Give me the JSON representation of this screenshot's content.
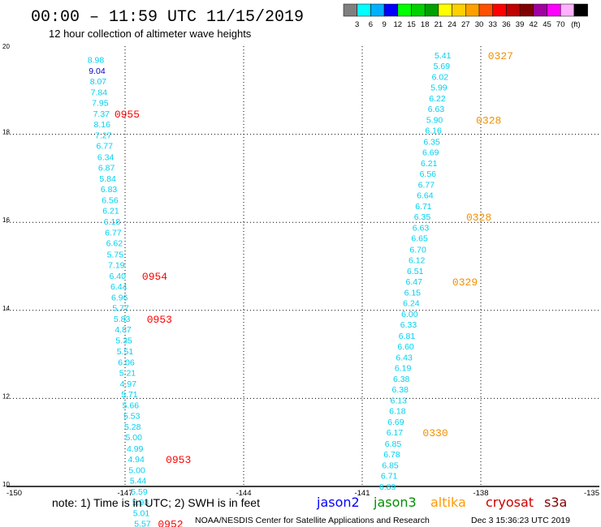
{
  "header": {
    "title": "00:00 – 11:59 UTC 11/15/2019",
    "subtitle": "12 hour collection of altimeter wave heights"
  },
  "colorbar": {
    "colors": [
      "#808080",
      "#00ffff",
      "#00b0ff",
      "#0000ff",
      "#00ff00",
      "#00d000",
      "#00a000",
      "#ffff00",
      "#ffd000",
      "#ffa000",
      "#ff5000",
      "#ff0000",
      "#c00000",
      "#800000",
      "#a000a0",
      "#ff00ff",
      "#ffb0ff",
      "#000000"
    ],
    "labels": [
      "3",
      "6",
      "9",
      "12",
      "15",
      "18",
      "21",
      "24",
      "27",
      "30",
      "33",
      "36",
      "39",
      "42",
      "45",
      "70"
    ],
    "unit": "(ft)"
  },
  "footer": {
    "note": "note: 1) Time is in UTC; 2) SWH is in feet",
    "legend": [
      {
        "name": "jason2",
        "color": "#0000ff"
      },
      {
        "name": "jason3",
        "color": "#009000"
      },
      {
        "name": "altika",
        "color": "#ff9900"
      },
      {
        "name": "cryosat",
        "color": "#cc0000"
      },
      {
        "name": "s3a",
        "color": "#800000"
      }
    ],
    "credit": "NOAA/NESDIS Center for Satellite Applications and Research",
    "timestamp": "Dec  3 15:36:23 UTC 2019"
  },
  "chart_data": {
    "type": "scatter",
    "xlim": [
      -150,
      -135
    ],
    "ylim": [
      10,
      20
    ],
    "x_ticks": [
      "-150",
      "-147",
      "-144",
      "-141",
      "-138",
      "-135"
    ],
    "x_tick_values": [
      -150,
      -147,
      -144,
      -141,
      -138,
      -135
    ],
    "y_ticks": [
      "10",
      "12",
      "14",
      "16",
      "18",
      "20"
    ],
    "y_tick_values": [
      10,
      12,
      14,
      16,
      18,
      20
    ],
    "grid": true,
    "track_left": {
      "color": "#00d0f0",
      "points": [
        {
          "x": -147.74,
          "y": 19.7,
          "v": "8.98"
        },
        {
          "x": -147.71,
          "y": 19.45,
          "v": "9.04",
          "color": "#0000c0"
        },
        {
          "x": -147.68,
          "y": 19.21,
          "v": "8.07"
        },
        {
          "x": -147.66,
          "y": 18.96,
          "v": "7.84"
        },
        {
          "x": -147.63,
          "y": 18.72,
          "v": "7.95"
        },
        {
          "x": -147.6,
          "y": 18.47,
          "v": "7.37"
        },
        {
          "x": -147.58,
          "y": 18.23,
          "v": "8.16"
        },
        {
          "x": -147.55,
          "y": 17.98,
          "v": "7.27"
        },
        {
          "x": -147.52,
          "y": 17.74,
          "v": "6.77"
        },
        {
          "x": -147.49,
          "y": 17.49,
          "v": "6.34"
        },
        {
          "x": -147.47,
          "y": 17.25,
          "v": "6.87"
        },
        {
          "x": -147.44,
          "y": 17.0,
          "v": "5.84"
        },
        {
          "x": -147.41,
          "y": 16.76,
          "v": "6.83"
        },
        {
          "x": -147.38,
          "y": 16.51,
          "v": "6.56"
        },
        {
          "x": -147.36,
          "y": 16.27,
          "v": "6.21"
        },
        {
          "x": -147.33,
          "y": 16.02,
          "v": "6.18"
        },
        {
          "x": -147.3,
          "y": 15.77,
          "v": "6.77"
        },
        {
          "x": -147.27,
          "y": 15.53,
          "v": "6.62"
        },
        {
          "x": -147.25,
          "y": 15.28,
          "v": "5.75"
        },
        {
          "x": -147.22,
          "y": 15.04,
          "v": "7.19"
        },
        {
          "x": -147.19,
          "y": 14.79,
          "v": "6.40"
        },
        {
          "x": -147.16,
          "y": 14.55,
          "v": "6.44"
        },
        {
          "x": -147.14,
          "y": 14.3,
          "v": "6.96"
        },
        {
          "x": -147.11,
          "y": 14.06,
          "v": "5.77"
        },
        {
          "x": -147.08,
          "y": 13.81,
          "v": "5.83"
        },
        {
          "x": -147.05,
          "y": 13.57,
          "v": "4.87"
        },
        {
          "x": -147.03,
          "y": 13.32,
          "v": "5.35"
        },
        {
          "x": -147.0,
          "y": 13.08,
          "v": "5.51"
        },
        {
          "x": -146.97,
          "y": 12.83,
          "v": "6.06"
        },
        {
          "x": -146.94,
          "y": 12.59,
          "v": "5.21"
        },
        {
          "x": -146.92,
          "y": 12.34,
          "v": "4.97"
        },
        {
          "x": -146.89,
          "y": 12.1,
          "v": "5.71"
        },
        {
          "x": -146.86,
          "y": 11.85,
          "v": "5.66"
        },
        {
          "x": -146.83,
          "y": 11.61,
          "v": "5.53"
        },
        {
          "x": -146.81,
          "y": 11.36,
          "v": "5.28"
        },
        {
          "x": -146.78,
          "y": 11.12,
          "v": "5.00"
        },
        {
          "x": -146.75,
          "y": 10.87,
          "v": "4.99"
        },
        {
          "x": -146.72,
          "y": 10.63,
          "v": "4.94"
        },
        {
          "x": -146.7,
          "y": 10.38,
          "v": "5.00"
        },
        {
          "x": -146.67,
          "y": 10.14,
          "v": "5.44"
        },
        {
          "x": -146.64,
          "y": 9.89,
          "v": "5.59"
        },
        {
          "x": -146.61,
          "y": 9.65,
          "v": "5.93"
        },
        {
          "x": -146.59,
          "y": 9.4,
          "v": "5.01"
        },
        {
          "x": -146.56,
          "y": 9.16,
          "v": "5.57"
        }
      ],
      "time_labels": [
        {
          "text": "0955",
          "x": -146.95,
          "y": 18.47
        },
        {
          "text": "0954",
          "x": -146.25,
          "y": 14.79
        },
        {
          "text": "0953",
          "x": -146.13,
          "y": 13.81
        },
        {
          "text": "0953",
          "x": -145.65,
          "y": 10.63
        },
        {
          "text": "0952",
          "x": -145.85,
          "y": 9.16
        }
      ],
      "time_color": "#ff0000"
    },
    "track_right": {
      "color": "#00d0f0",
      "points": [
        {
          "x": -138.96,
          "y": 19.8,
          "v": "5.41"
        },
        {
          "x": -138.99,
          "y": 19.56,
          "v": "5.69"
        },
        {
          "x": -139.03,
          "y": 19.31,
          "v": "6.02"
        },
        {
          "x": -139.06,
          "y": 19.07,
          "v": "5.99"
        },
        {
          "x": -139.1,
          "y": 18.82,
          "v": "6.22"
        },
        {
          "x": -139.13,
          "y": 18.58,
          "v": "6.63"
        },
        {
          "x": -139.17,
          "y": 18.33,
          "v": "5.90"
        },
        {
          "x": -139.2,
          "y": 18.09,
          "v": "6.16"
        },
        {
          "x": -139.24,
          "y": 17.84,
          "v": "6.35"
        },
        {
          "x": -139.27,
          "y": 17.6,
          "v": "6.69"
        },
        {
          "x": -139.31,
          "y": 17.35,
          "v": "6.21"
        },
        {
          "x": -139.34,
          "y": 17.11,
          "v": "6.56"
        },
        {
          "x": -139.38,
          "y": 16.86,
          "v": "6.77"
        },
        {
          "x": -139.41,
          "y": 16.62,
          "v": "6.64"
        },
        {
          "x": -139.45,
          "y": 16.37,
          "v": "6.71"
        },
        {
          "x": -139.48,
          "y": 16.13,
          "v": "6.35"
        },
        {
          "x": -139.52,
          "y": 15.88,
          "v": "6.63"
        },
        {
          "x": -139.55,
          "y": 15.64,
          "v": "6.65"
        },
        {
          "x": -139.59,
          "y": 15.39,
          "v": "6.70"
        },
        {
          "x": -139.62,
          "y": 15.15,
          "v": "6.12"
        },
        {
          "x": -139.66,
          "y": 14.9,
          "v": "6.51"
        },
        {
          "x": -139.69,
          "y": 14.66,
          "v": "6.47"
        },
        {
          "x": -139.73,
          "y": 14.41,
          "v": "6.15"
        },
        {
          "x": -139.76,
          "y": 14.17,
          "v": "6.24"
        },
        {
          "x": -139.8,
          "y": 13.92,
          "v": "6.00"
        },
        {
          "x": -139.83,
          "y": 13.68,
          "v": "6.33"
        },
        {
          "x": -139.87,
          "y": 13.43,
          "v": "6.81"
        },
        {
          "x": -139.9,
          "y": 13.19,
          "v": "6.60"
        },
        {
          "x": -139.94,
          "y": 12.94,
          "v": "6.43"
        },
        {
          "x": -139.97,
          "y": 12.7,
          "v": "6.19"
        },
        {
          "x": -140.01,
          "y": 12.45,
          "v": "6.38"
        },
        {
          "x": -140.04,
          "y": 12.21,
          "v": "6.38"
        },
        {
          "x": -140.08,
          "y": 11.96,
          "v": "6.13"
        },
        {
          "x": -140.11,
          "y": 11.72,
          "v": "6.18"
        },
        {
          "x": -140.15,
          "y": 11.47,
          "v": "6.69"
        },
        {
          "x": -140.18,
          "y": 11.23,
          "v": "6.17"
        },
        {
          "x": -140.22,
          "y": 10.98,
          "v": "6.85"
        },
        {
          "x": -140.25,
          "y": 10.74,
          "v": "6.78"
        },
        {
          "x": -140.29,
          "y": 10.49,
          "v": "6.85"
        },
        {
          "x": -140.32,
          "y": 10.25,
          "v": "6.71"
        },
        {
          "x": -140.36,
          "y": 10.0,
          "v": "6.89"
        }
      ],
      "time_labels": [
        {
          "text": "0327",
          "x": -137.5,
          "y": 19.8
        },
        {
          "text": "0328",
          "x": -137.8,
          "y": 18.33
        },
        {
          "text": "0328",
          "x": -138.05,
          "y": 16.13
        },
        {
          "text": "0329",
          "x": -138.4,
          "y": 14.66
        },
        {
          "text": "0330",
          "x": -139.15,
          "y": 11.23
        }
      ],
      "time_color": "#f09000"
    }
  }
}
